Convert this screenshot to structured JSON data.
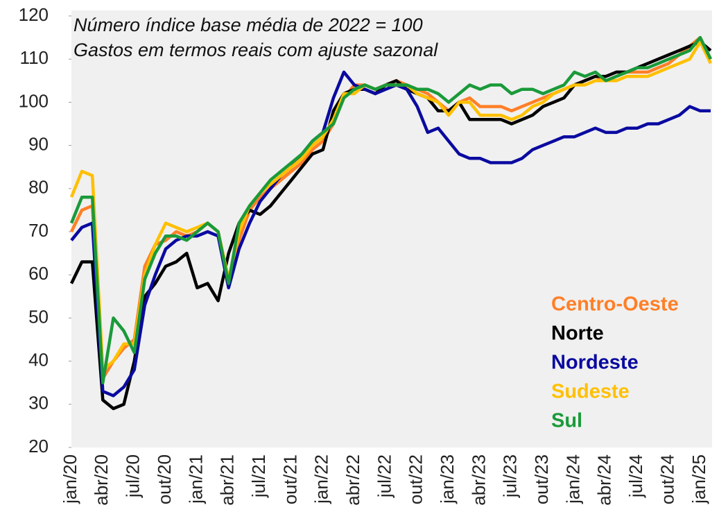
{
  "chart_data": {
    "type": "line",
    "annotations": [
      "Número índice base média de 2022 = 100",
      "Gastos em termos reais com ajuste sazonal"
    ],
    "categories": [
      "jan/20",
      null,
      null,
      "abr/20",
      null,
      null,
      "jul/20",
      null,
      null,
      "out/20",
      null,
      null,
      "jan/21",
      null,
      null,
      "abr/21",
      null,
      null,
      "jul/21",
      null,
      null,
      "out/21",
      null,
      null,
      "jan/22",
      null,
      null,
      "abr/22",
      null,
      null,
      "jul/22",
      null,
      null,
      "out/22",
      null,
      null,
      "jan/23",
      null,
      null,
      "abr/23",
      null,
      null,
      "jul/23",
      null,
      null,
      "out/23",
      null,
      null,
      "jan/24",
      null,
      null,
      "abr/24",
      null,
      null,
      "jul/24",
      null,
      null,
      "out/24",
      null,
      null,
      "jan/25",
      null
    ],
    "series": [
      {
        "name": "Centro-Oeste",
        "color": "#ff7f27",
        "values": [
          70,
          75,
          76,
          36,
          40,
          43,
          45,
          62,
          67,
          68,
          70,
          69,
          70,
          72,
          70,
          59,
          68,
          75,
          78,
          80,
          82,
          84,
          86,
          89,
          91,
          95,
          101,
          104,
          104,
          103,
          104,
          105,
          104,
          103,
          102,
          100,
          98,
          100,
          101,
          99,
          99,
          99,
          98,
          99,
          100,
          101,
          102,
          103,
          104,
          105,
          106,
          105,
          106,
          107,
          107,
          107,
          108,
          109,
          111,
          113,
          115,
          110
        ]
      },
      {
        "name": "Norte",
        "color": "#000000",
        "values": [
          58,
          63,
          63,
          31,
          29,
          30,
          40,
          55,
          58,
          62,
          63,
          65,
          57,
          58,
          54,
          65,
          72,
          75,
          74,
          76,
          79,
          82,
          85,
          88,
          89,
          98,
          102,
          103,
          103,
          102,
          104,
          105,
          103,
          102,
          101,
          98,
          98,
          100,
          96,
          96,
          96,
          96,
          95,
          96,
          97,
          99,
          100,
          101,
          104,
          105,
          106,
          106,
          107,
          107,
          108,
          109,
          110,
          111,
          112,
          113,
          114,
          112
        ]
      },
      {
        "name": "Nordeste",
        "color": "#0a0aa0",
        "values": [
          68,
          71,
          72,
          33,
          32,
          34,
          38,
          53,
          60,
          66,
          68,
          69,
          69,
          70,
          69,
          57,
          66,
          72,
          77,
          80,
          83,
          85,
          88,
          91,
          93,
          101,
          107,
          104,
          103,
          102,
          103,
          104,
          103,
          99,
          93,
          94,
          91,
          88,
          87,
          87,
          86,
          86,
          86,
          87,
          89,
          90,
          91,
          92,
          92,
          93,
          94,
          93,
          93,
          94,
          94,
          95,
          95,
          96,
          97,
          99,
          98,
          98
        ]
      },
      {
        "name": "Sudeste",
        "color": "#ffc000",
        "values": [
          78,
          84,
          83,
          38,
          40,
          44,
          44,
          60,
          67,
          72,
          71,
          70,
          71,
          72,
          70,
          59,
          70,
          76,
          79,
          81,
          83,
          85,
          87,
          90,
          92,
          96,
          102,
          102,
          104,
          103,
          104,
          104,
          104,
          102,
          101,
          100,
          97,
          100,
          100,
          97,
          97,
          97,
          96,
          97,
          99,
          100,
          102,
          103,
          104,
          104,
          105,
          105,
          105,
          106,
          106,
          106,
          107,
          108,
          109,
          110,
          114,
          109
        ]
      },
      {
        "name": "Sul",
        "color": "#1a9a3a",
        "values": [
          72,
          78,
          78,
          35,
          50,
          47,
          42,
          59,
          65,
          69,
          69,
          68,
          70,
          72,
          70,
          58,
          72,
          76,
          79,
          82,
          84,
          86,
          88,
          91,
          93,
          95,
          101,
          103,
          104,
          103,
          104,
          104,
          104,
          103,
          103,
          102,
          100,
          102,
          104,
          103,
          104,
          104,
          102,
          103,
          103,
          102,
          103,
          104,
          107,
          106,
          107,
          105,
          106,
          107,
          108,
          108,
          109,
          110,
          111,
          112,
          115,
          110
        ]
      }
    ],
    "ylim": [
      20,
      120
    ],
    "yticks": [
      20,
      30,
      40,
      50,
      60,
      70,
      80,
      90,
      100,
      110,
      120
    ],
    "grid": false,
    "legend": "lower right"
  }
}
